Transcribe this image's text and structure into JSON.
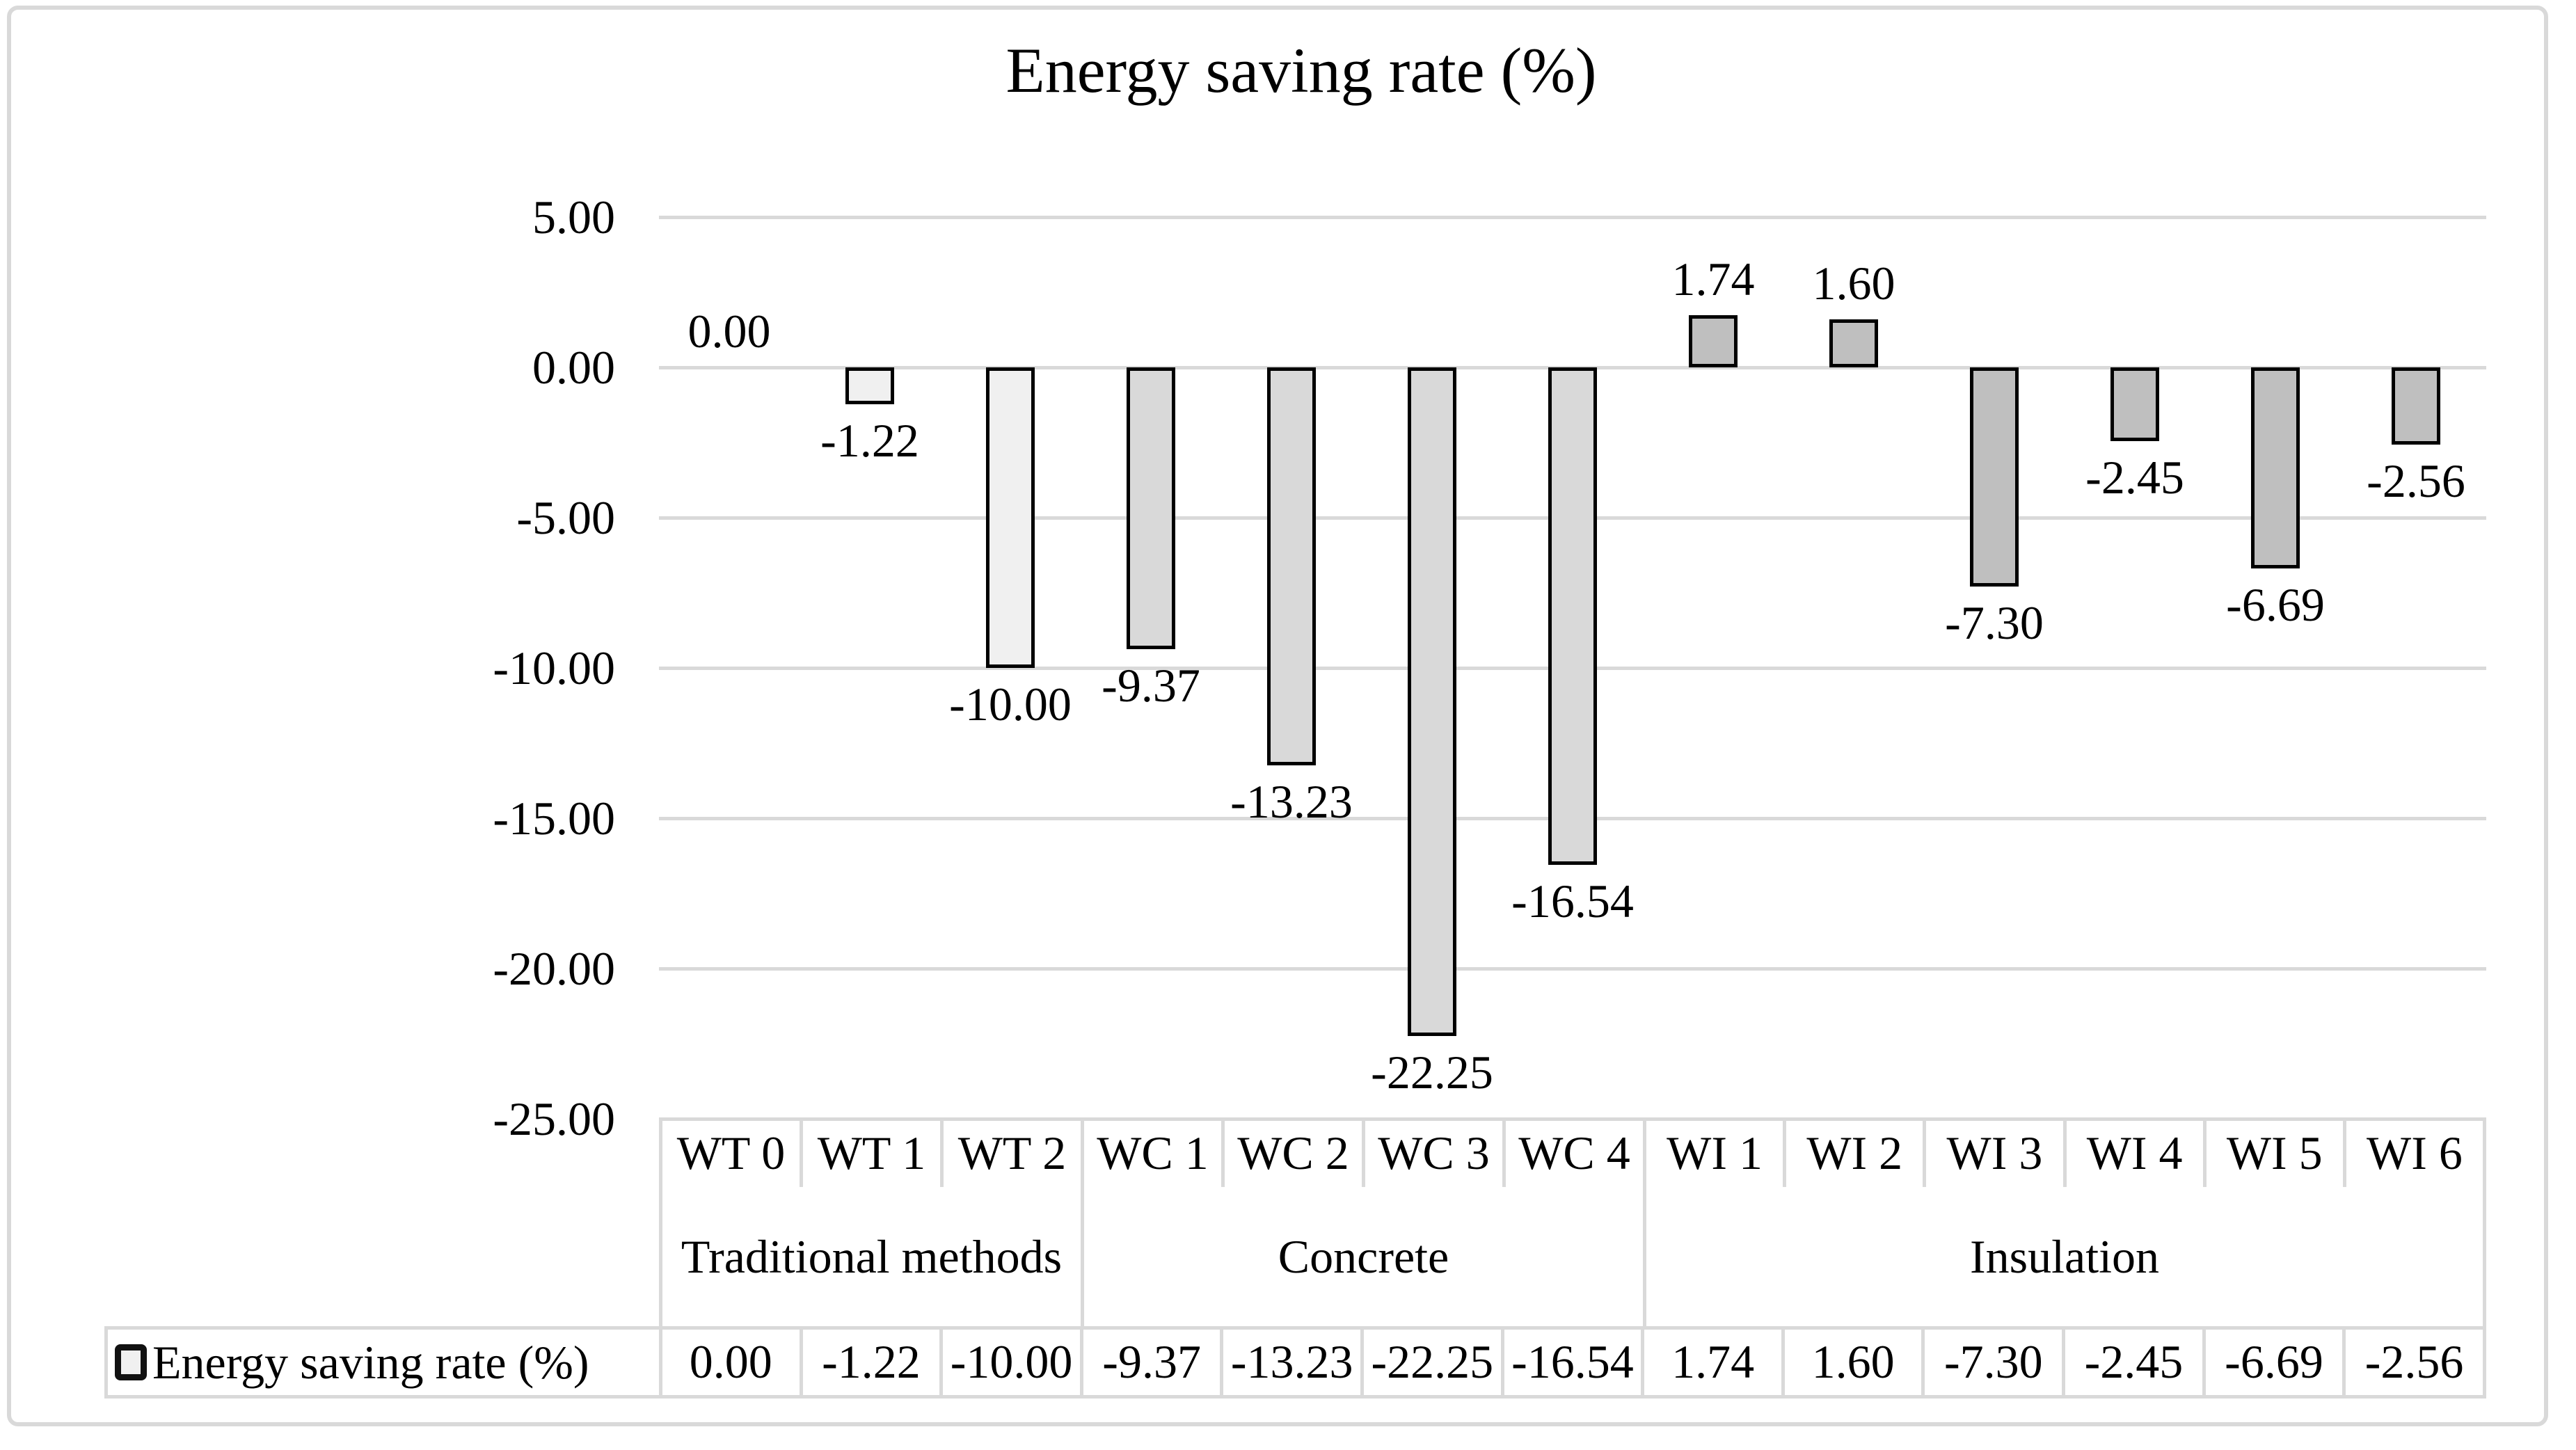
{
  "title": "Energy saving rate (%)",
  "legend": {
    "series_label": "Energy saving rate (%)",
    "key_color": "#f0f0f0"
  },
  "y_axis": {
    "tick_labels": [
      "5.00",
      "0.00",
      "-5.00",
      "-10.00",
      "-15.00",
      "-20.00",
      "-25.00"
    ],
    "tick_values": [
      5,
      0,
      -5,
      -10,
      -15,
      -20,
      -25
    ]
  },
  "chart_data": {
    "type": "bar",
    "title": "Energy saving rate (%)",
    "categories": [
      "WT 0",
      "WT 1",
      "WT 2",
      "WC 1",
      "WC 2",
      "WC 3",
      "WC 4",
      "WI 1",
      "WI 2",
      "WI 3",
      "WI 4",
      "WI 5",
      "WI 6"
    ],
    "values": [
      0.0,
      -1.22,
      -10.0,
      -9.37,
      -13.23,
      -22.25,
      -16.54,
      1.74,
      1.6,
      -7.3,
      -2.45,
      -6.69,
      -2.56
    ],
    "value_labels": [
      "0.00",
      "-1.22",
      "-10.00",
      "-9.37",
      "-13.23",
      "-22.25",
      "-16.54",
      "1.74",
      "1.60",
      "-7.30",
      "-2.45",
      "-6.69",
      "-2.56"
    ],
    "series": [
      {
        "name": "Energy saving rate (%)",
        "values": [
          0.0,
          -1.22,
          -10.0,
          -9.37,
          -13.23,
          -22.25,
          -16.54,
          1.74,
          1.6,
          -7.3,
          -2.45,
          -6.69,
          -2.56
        ]
      }
    ],
    "groups": [
      {
        "label": "Traditional methods",
        "span": 3,
        "bar_color": "#f0f0f0"
      },
      {
        "label": "Concrete",
        "span": 4,
        "bar_color": "#d9d9d9"
      },
      {
        "label": "Insulation",
        "span": 6,
        "bar_color": "#bfbfbf"
      }
    ],
    "xlabel": "",
    "ylabel": "",
    "ylim": [
      -25,
      5
    ],
    "grid": true,
    "gridline_color": "#d9d9d9",
    "bar_border_color": "#000000",
    "legend_position": "bottom-table-row"
  }
}
